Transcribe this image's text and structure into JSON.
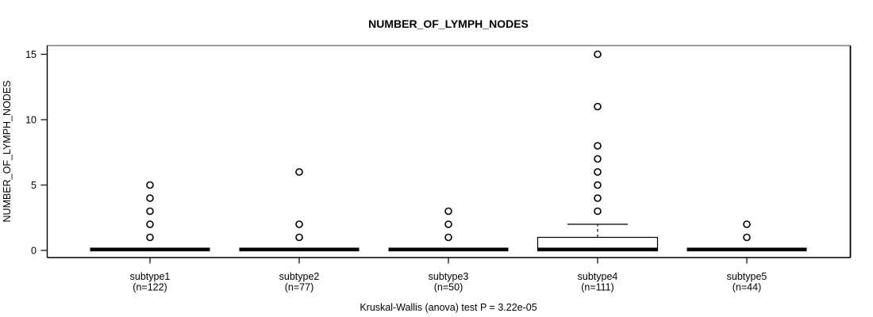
{
  "title": "NUMBER_OF_LYMPH_NODES",
  "footer": "Kruskal-Wallis (anova) test P = 3.22e-05",
  "colors": {
    "foreground": "#000000",
    "background": "#ffffff",
    "frame_top": "#8c8c8c"
  },
  "chart_data": {
    "type": "boxplot",
    "title": "NUMBER_OF_LYMPH_NODES",
    "ylabel": "NUMBER_OF_LYMPH_NODES",
    "xlabel": "",
    "annotation": "Kruskal-Wallis (anova) test P = 3.22e-05",
    "ylim": [
      0,
      15
    ],
    "yticks": [
      0,
      5,
      10,
      15
    ],
    "grid": false,
    "legend": "none",
    "categories": [
      "subtype1",
      "subtype2",
      "subtype3",
      "subtype4",
      "subtype5"
    ],
    "groups": [
      {
        "name": "subtype1",
        "count_label": "(n=122)",
        "n": 122,
        "whisker_low": 0,
        "q1": 0,
        "median": 0,
        "q3": 0,
        "whisker_high": 0,
        "outliers": [
          1,
          2,
          3,
          4,
          5
        ]
      },
      {
        "name": "subtype2",
        "count_label": "(n=77)",
        "n": 77,
        "whisker_low": 0,
        "q1": 0,
        "median": 0,
        "q3": 0,
        "whisker_high": 0,
        "outliers": [
          1,
          2,
          6
        ]
      },
      {
        "name": "subtype3",
        "count_label": "(n=50)",
        "n": 50,
        "whisker_low": 0,
        "q1": 0,
        "median": 0,
        "q3": 0,
        "whisker_high": 0,
        "outliers": [
          1,
          2,
          3
        ]
      },
      {
        "name": "subtype4",
        "count_label": "(n=111)",
        "n": 111,
        "whisker_low": 0,
        "q1": 0,
        "median": 0,
        "q3": 1,
        "whisker_high": 2,
        "outliers": [
          3,
          4,
          5,
          6,
          7,
          8,
          11,
          15
        ]
      },
      {
        "name": "subtype5",
        "count_label": "(n=44)",
        "n": 44,
        "whisker_low": 0,
        "q1": 0,
        "median": 0,
        "q3": 0,
        "whisker_high": 0,
        "outliers": [
          1,
          2
        ]
      }
    ]
  }
}
